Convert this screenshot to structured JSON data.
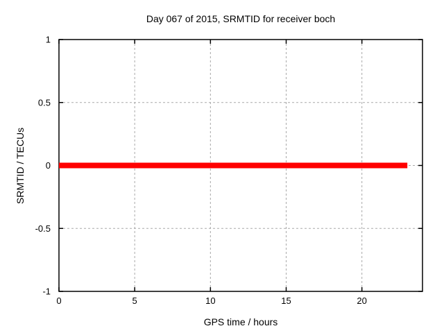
{
  "chart_data": {
    "type": "line",
    "title": "Day 067 of 2015, SRMTID for receiver boch",
    "xlabel": "GPS time / hours",
    "ylabel": "SRMTID / TECUs",
    "xlim": [
      0,
      24
    ],
    "ylim": [
      -1,
      1
    ],
    "xticks": [
      0,
      5,
      10,
      15,
      20
    ],
    "yticks": [
      -1,
      -0.5,
      0,
      0.5,
      1
    ],
    "grid": true,
    "grid_style": "dashed",
    "legend": "none",
    "series": [
      {
        "name": "SRMTID",
        "x": [
          0,
          23
        ],
        "y": [
          0,
          0
        ],
        "color": "#ff0000",
        "line_width": 8
      }
    ],
    "colors": {
      "background": "#ffffff",
      "border": "#000000",
      "grid": "#a8a8a8",
      "text": "#000000"
    }
  }
}
